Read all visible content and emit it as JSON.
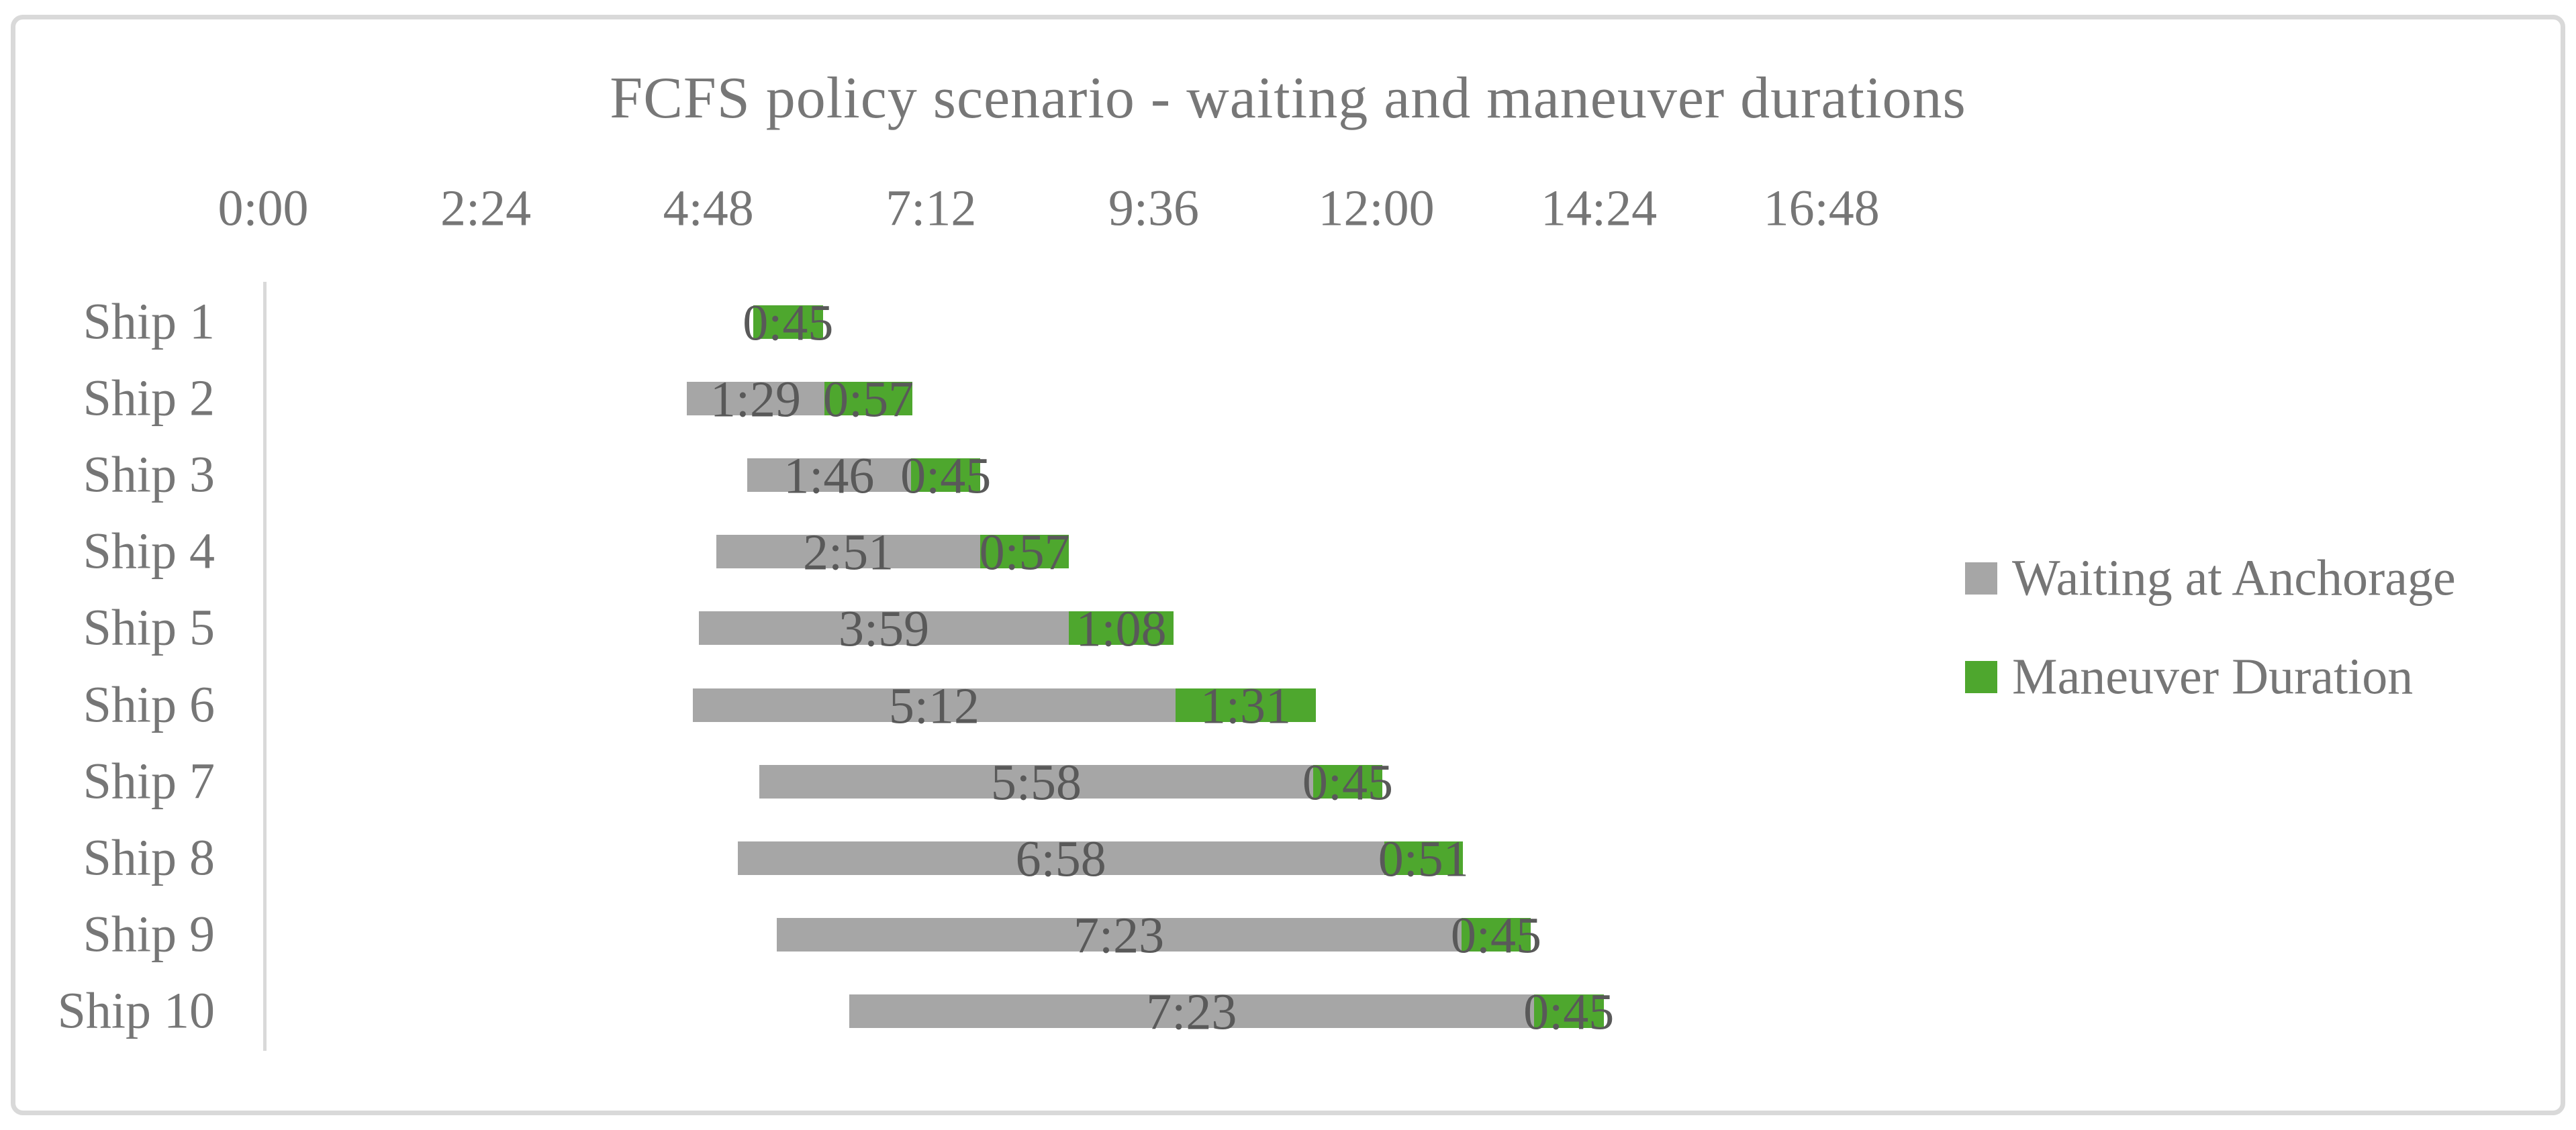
{
  "title": "FCFS policy scenario - waiting and maneuver durations",
  "colors": {
    "waiting_bar": "#A6A6A6",
    "maneuver_bar": "#4EA72E",
    "axis_line": "#D9D9D9",
    "frame_border": "#D9D9D9",
    "muted_text": "#767676",
    "bar_label_text": "#595959",
    "background": "#FFFFFF"
  },
  "legend": {
    "position": "right",
    "items": [
      {
        "label": "Waiting at Anchorage",
        "color": "#A6A6A6"
      },
      {
        "label": "Maneuver Duration",
        "color": "#4EA72E"
      }
    ]
  },
  "chart_data": {
    "type": "bar",
    "subtype": "horizontal-stacked-gantt",
    "title": "FCFS policy scenario - waiting and maneuver durations",
    "x_axis": {
      "unit": "h:mm",
      "tick_labels": [
        "0:00",
        "2:24",
        "4:48",
        "7:12",
        "9:36",
        "12:00",
        "14:24",
        "16:48"
      ],
      "tick_minutes": [
        0,
        144,
        288,
        432,
        576,
        720,
        864,
        1008
      ],
      "min_minutes": 0,
      "max_minutes": 1008,
      "gridlines": false
    },
    "categories": [
      "Ship 1",
      "Ship 2",
      "Ship 3",
      "Ship 4",
      "Ship 5",
      "Ship 6",
      "Ship 7",
      "Ship 8",
      "Ship 9",
      "Ship 10"
    ],
    "bar_start_offsets_min": [
      317,
      274,
      313,
      293,
      282,
      278,
      321,
      307,
      332,
      379
    ],
    "series": [
      {
        "name": "Waiting at Anchorage",
        "values_min": [
          0,
          89,
          106,
          171,
          239,
          312,
          358,
          418,
          443,
          443
        ],
        "labels": [
          "",
          "1:29",
          "1:46",
          "2:51",
          "3:59",
          "5:12",
          "5:58",
          "6:58",
          "7:23",
          "7:23"
        ]
      },
      {
        "name": "Maneuver Duration",
        "values_min": [
          45,
          57,
          45,
          57,
          68,
          91,
          45,
          51,
          45,
          45
        ],
        "labels": [
          "0:45",
          "0:57",
          "0:45",
          "0:57",
          "1:08",
          "1:31",
          "0:45",
          "0:51",
          "0:45",
          "0:45"
        ]
      }
    ],
    "legend_position": "right"
  }
}
